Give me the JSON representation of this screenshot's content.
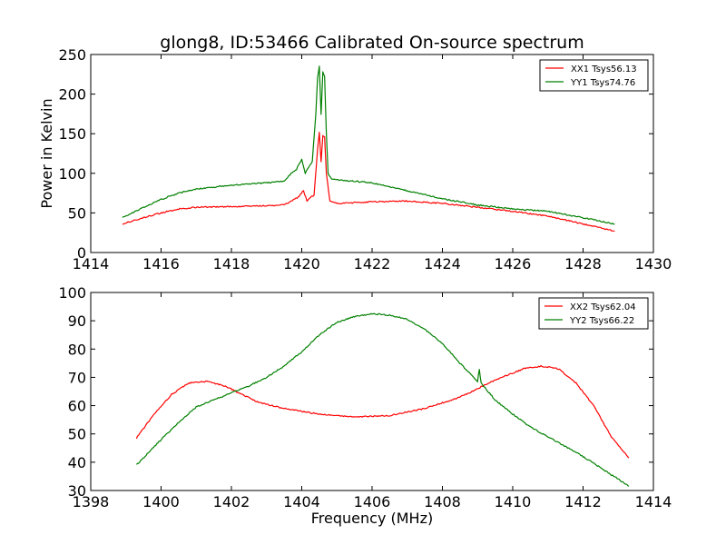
{
  "chart_data": [
    {
      "type": "line",
      "title": "glong8, ID:53466 Calibrated On-source spectrum",
      "xlabel": "",
      "ylabel": "Power in Kelvin",
      "xlim": [
        1414,
        1430
      ],
      "ylim": [
        0,
        250
      ],
      "xticks": [
        "1414",
        "1416",
        "1418",
        "1420",
        "1422",
        "1424",
        "1426",
        "1428",
        "1430"
      ],
      "yticks": [
        "0",
        "50",
        "100",
        "150",
        "200",
        "250"
      ],
      "grid": false,
      "legend": "top-right",
      "series": [
        {
          "name": "XX1 Tsys56.13",
          "color": "#ff0000",
          "x": [
            1414.9,
            1415.5,
            1416,
            1416.5,
            1417,
            1418,
            1419,
            1419.5,
            1419.7,
            1419.9,
            1420.05,
            1420.15,
            1420.25,
            1420.35,
            1420.45,
            1420.5,
            1420.55,
            1420.6,
            1420.65,
            1420.7,
            1420.8,
            1421,
            1422,
            1423,
            1424,
            1425,
            1426,
            1427,
            1428,
            1428.9
          ],
          "values": [
            36,
            44,
            50,
            55,
            57,
            58,
            59,
            60,
            65,
            70,
            78,
            65,
            70,
            72,
            130,
            152,
            115,
            148,
            146,
            100,
            65,
            62,
            64,
            65,
            62,
            57,
            52,
            46,
            36,
            27
          ]
        },
        {
          "name": "YY1 Tsys74.76",
          "color": "#008000",
          "x": [
            1414.9,
            1415.5,
            1416,
            1416.5,
            1417,
            1418,
            1419,
            1419.5,
            1419.7,
            1419.85,
            1420,
            1420.1,
            1420.2,
            1420.3,
            1420.4,
            1420.45,
            1420.5,
            1420.55,
            1420.6,
            1420.65,
            1420.7,
            1420.75,
            1420.85,
            1421,
            1422,
            1423,
            1424,
            1425,
            1426,
            1427,
            1428,
            1428.9
          ],
          "values": [
            44,
            57,
            67,
            75,
            80,
            85,
            88,
            90,
            100,
            105,
            118,
            100,
            108,
            115,
            175,
            220,
            235,
            175,
            228,
            222,
            150,
            100,
            93,
            92,
            88,
            78,
            68,
            60,
            55,
            52,
            44,
            36
          ]
        }
      ]
    },
    {
      "type": "line",
      "title": "",
      "xlabel": "Frequency (MHz)",
      "ylabel": "",
      "xlim": [
        1398,
        1414
      ],
      "ylim": [
        30,
        100
      ],
      "xticks": [
        "1398",
        "1400",
        "1402",
        "1404",
        "1406",
        "1408",
        "1410",
        "1412",
        "1414"
      ],
      "yticks": [
        "30",
        "40",
        "50",
        "60",
        "70",
        "80",
        "90",
        "100"
      ],
      "grid": false,
      "legend": "top-right",
      "series": [
        {
          "name": "XX2 Tsys62.04",
          "color": "#ff0000",
          "x": [
            1399.3,
            1399.8,
            1400.3,
            1400.8,
            1401.3,
            1401.8,
            1402.3,
            1402.8,
            1403.5,
            1404.5,
            1405.5,
            1406.5,
            1407.5,
            1408.5,
            1409.5,
            1410.3,
            1410.8,
            1411.3,
            1411.8,
            1412.3,
            1412.8,
            1413.3
          ],
          "values": [
            48.5,
            57,
            64,
            68,
            68.5,
            67,
            64,
            61,
            59,
            57,
            56,
            56.5,
            59,
            63,
            69,
            73,
            74,
            73,
            68,
            60,
            49,
            41.5
          ]
        },
        {
          "name": "YY2 Tsys66.22",
          "color": "#008000",
          "x": [
            1399.3,
            1400,
            1400.5,
            1401,
            1401.5,
            1402,
            1402.5,
            1403,
            1403.5,
            1404,
            1404.5,
            1405,
            1405.5,
            1406,
            1406.5,
            1407,
            1407.5,
            1408,
            1408.5,
            1409,
            1409.05,
            1409.1,
            1409.5,
            1410,
            1410.5,
            1411,
            1411.5,
            1412,
            1412.5,
            1413,
            1413.3
          ],
          "values": [
            39,
            48,
            54,
            59.5,
            62,
            64.5,
            67,
            70,
            74,
            79,
            85,
            89.5,
            91.5,
            92.5,
            92,
            90.5,
            87,
            82,
            75,
            68.5,
            73,
            68,
            62,
            57,
            52.5,
            49,
            45.5,
            42,
            38,
            34,
            31.5
          ]
        }
      ]
    }
  ]
}
